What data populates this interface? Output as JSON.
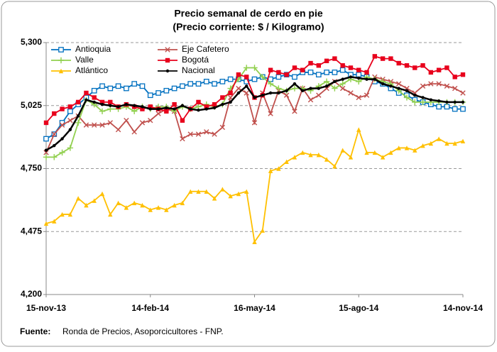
{
  "chart_data": {
    "type": "line",
    "title": "Precio semanal de cerdo en pie",
    "subtitle": "(Precio corriente: $ / Kilogramo)",
    "source_label": "Fuente:",
    "source": "Ronda de Precios, Asoporcicultores  - FNP.",
    "categories": [
      "15-nov-13",
      null,
      null,
      null,
      null,
      null,
      null,
      null,
      null,
      null,
      null,
      null,
      null,
      "14-feb-14",
      null,
      null,
      null,
      null,
      null,
      null,
      null,
      null,
      null,
      null,
      null,
      null,
      "16-may-14",
      null,
      null,
      null,
      null,
      null,
      null,
      null,
      null,
      null,
      null,
      null,
      null,
      "15-ago-14",
      null,
      null,
      null,
      null,
      null,
      null,
      null,
      null,
      null,
      null,
      null,
      null,
      "14-nov-14"
    ],
    "ylim": [
      4200,
      5300
    ],
    "yticks": [
      {
        "value": 4200,
        "label": "4,200"
      },
      {
        "value": 4475,
        "label": "4,475"
      },
      {
        "value": 4750,
        "label": "4,750"
      },
      {
        "value": 5025,
        "label": "5,025"
      },
      {
        "value": 5300,
        "label": "5,300"
      }
    ],
    "grid": true,
    "series": [
      {
        "name": "Antioquia",
        "color": "#0070c0",
        "marker": "square-open",
        "values": [
          4880,
          4900,
          4950,
          5000,
          5030,
          5060,
          5090,
          5110,
          5100,
          5110,
          5100,
          5120,
          5110,
          5070,
          5080,
          5090,
          5100,
          5110,
          5120,
          5120,
          5130,
          5120,
          5130,
          5140,
          5140,
          5130,
          5140,
          5150,
          5140,
          5150,
          5160,
          5150,
          5170,
          5170,
          5160,
          5170,
          5170,
          5180,
          5160,
          5160,
          5150,
          5130,
          5120,
          5100,
          5080,
          5070,
          5050,
          5040,
          5030,
          5020,
          5020,
          5010,
          5010
        ]
      },
      {
        "name": "Eje Cafetero",
        "color": "#c0504d",
        "marker": "x",
        "values": [
          4820,
          4900,
          4940,
          4960,
          4980,
          4940,
          4940,
          4940,
          4950,
          4920,
          4960,
          4910,
          4950,
          4960,
          4990,
          5010,
          5000,
          4880,
          4900,
          4900,
          4910,
          4900,
          4930,
          5060,
          5100,
          5080,
          4950,
          5080,
          4990,
          5090,
          5070,
          5000,
          5100,
          5050,
          5070,
          5100,
          5130,
          5100,
          5080,
          5060,
          5070,
          5150,
          5140,
          5130,
          5120,
          5100,
          5080,
          5110,
          5120,
          5120,
          5110,
          5100,
          5080
        ]
      },
      {
        "name": "Valle",
        "color": "#92d050",
        "marker": "plus",
        "values": [
          4800,
          4800,
          4820,
          4840,
          4950,
          5050,
          5030,
          5000,
          5010,
          5010,
          5020,
          5000,
          5020,
          5010,
          5020,
          5020,
          5000,
          5020,
          5010,
          5020,
          5030,
          5020,
          5030,
          5100,
          5140,
          5190,
          5190,
          5150,
          5120,
          5100,
          5090,
          5100,
          5100,
          5090,
          5110,
          5130,
          5100,
          5120,
          5140,
          5130,
          5150,
          5140,
          5130,
          5120,
          5090,
          5060,
          5040,
          5040,
          5040,
          5040,
          5040,
          5040,
          5040
        ]
      },
      {
        "name": "Bogotá",
        "color": "#e8001c",
        "marker": "square",
        "values": [
          4950,
          4990,
          5010,
          5020,
          5040,
          5080,
          5060,
          5040,
          5040,
          5020,
          5030,
          5020,
          5010,
          5020,
          5010,
          5000,
          5030,
          4960,
          5010,
          5040,
          5020,
          5030,
          5060,
          5080,
          5160,
          5150,
          5060,
          5070,
          5180,
          5170,
          5160,
          5190,
          5180,
          5210,
          5200,
          5220,
          5230,
          5200,
          5190,
          5180,
          5170,
          5240,
          5230,
          5230,
          5210,
          5200,
          5190,
          5200,
          5170,
          5180,
          5190,
          5150,
          5160
        ]
      },
      {
        "name": "Atlántico",
        "color": "#ffc000",
        "marker": "triangle",
        "values": [
          4510,
          4520,
          4550,
          4550,
          4620,
          4590,
          4610,
          4640,
          4550,
          4600,
          4580,
          4600,
          4590,
          4570,
          4580,
          4570,
          4590,
          4600,
          4650,
          4650,
          4650,
          4620,
          4660,
          4630,
          4640,
          4650,
          4430,
          4480,
          4740,
          4750,
          4780,
          4800,
          4820,
          4810,
          4810,
          4790,
          4760,
          4830,
          4800,
          4920,
          4820,
          4820,
          4800,
          4820,
          4840,
          4840,
          4830,
          4850,
          4860,
          4880,
          4860,
          4860,
          4870
        ]
      },
      {
        "name": "Nacional",
        "color": "#000000",
        "marker": "dot",
        "values": [
          4830,
          4850,
          4880,
          4920,
          4980,
          5050,
          5040,
          5030,
          5025,
          5020,
          5030,
          5025,
          5020,
          5010,
          5010,
          5015,
          5010,
          5025,
          5010,
          5005,
          5010,
          5015,
          5030,
          5040,
          5080,
          5110,
          5060,
          5070,
          5080,
          5080,
          5090,
          5120,
          5090,
          5100,
          5100,
          5110,
          5130,
          5140,
          5150,
          5145,
          5140,
          5140,
          5120,
          5110,
          5100,
          5090,
          5070,
          5060,
          5050,
          5045,
          5040,
          5040,
          5040
        ]
      }
    ]
  }
}
